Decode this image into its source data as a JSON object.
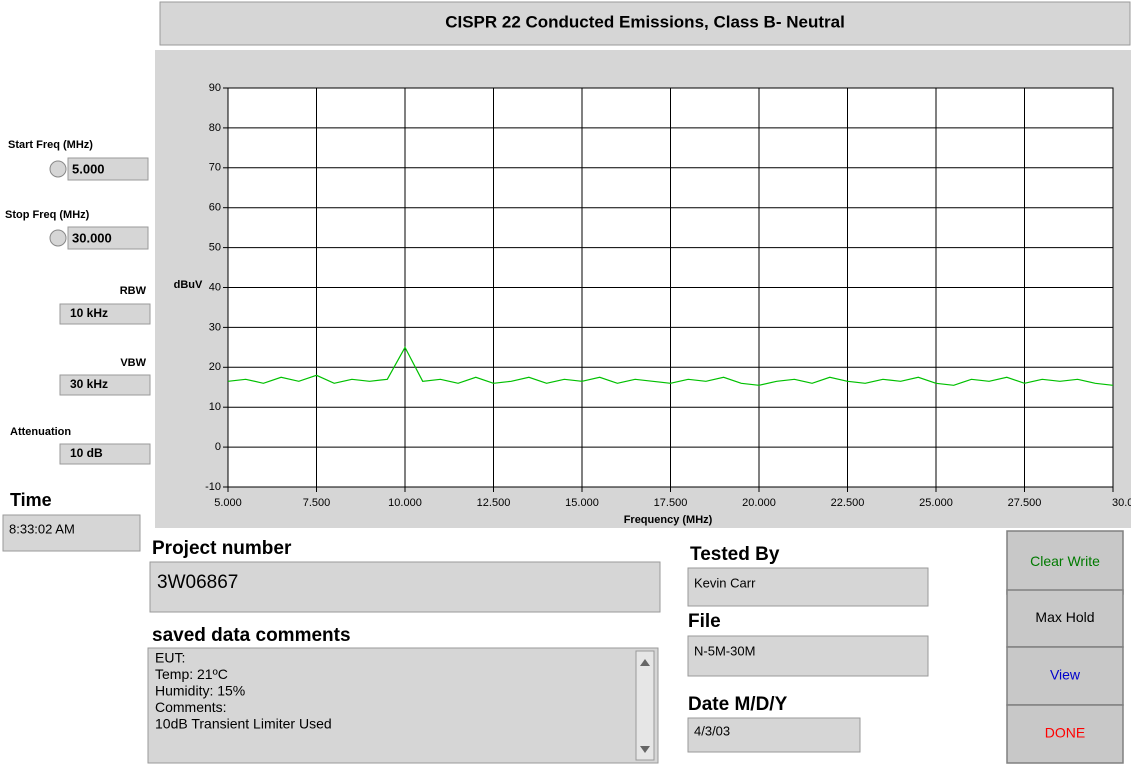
{
  "controls": {
    "start_freq": {
      "label": "Start Freq (MHz)",
      "value": "5.000"
    },
    "stop_freq": {
      "label": "Stop Freq (MHz)",
      "value": "30.000"
    },
    "rbw": {
      "label": "RBW",
      "value": "10 kHz"
    },
    "vbw": {
      "label": "VBW",
      "value": "30 kHz"
    },
    "attenuation": {
      "label": "Attenuation",
      "value": "10 dB"
    },
    "time": {
      "label": "Time",
      "value": "8:33:02 AM"
    }
  },
  "project": {
    "label": "Project number",
    "value": "3W06867"
  },
  "comments": {
    "label": "saved data comments",
    "lines": [
      "EUT:",
      "Temp: 21ºC",
      "Humidity: 15%",
      "Comments:",
      "10dB Transient Limiter Used"
    ]
  },
  "tested_by": {
    "label": "Tested By",
    "value": "Kevin Carr"
  },
  "file": {
    "label": "File",
    "value": "N-5M-30M"
  },
  "date": {
    "label": "Date M/D/Y",
    "value": "4/3/03"
  },
  "buttons": [
    {
      "label": "Clear Write",
      "color": "#007a00"
    },
    {
      "label": "Max Hold",
      "color": "#000000"
    },
    {
      "label": "View",
      "color": "#0000cc"
    },
    {
      "label": "DONE",
      "color": "#ff0000"
    }
  ],
  "chart_data": {
    "type": "line",
    "title": "CISPR 22 Conducted Emissions, Class B- Neutral",
    "x_label": "Frequency (MHz)",
    "y_label": "dBuV",
    "x": [
      5,
      5.5,
      6,
      6.5,
      7,
      7.5,
      8,
      8.5,
      9,
      9.5,
      10,
      10.5,
      11,
      11.5,
      12,
      12.5,
      13,
      13.5,
      14,
      14.5,
      15,
      15.5,
      16,
      16.5,
      17,
      17.5,
      18,
      18.5,
      19,
      19.5,
      20,
      20.5,
      21,
      21.5,
      22,
      22.5,
      23,
      23.5,
      24,
      24.5,
      25,
      25.5,
      26,
      26.5,
      27,
      27.5,
      28,
      28.5,
      29,
      29.5,
      30
    ],
    "series": [
      {
        "name": "Neutral",
        "color": "#00c000",
        "values": [
          16.5,
          17,
          16,
          17.5,
          16.5,
          18,
          16,
          17,
          16.5,
          17,
          25,
          16.5,
          17,
          16,
          17.5,
          16,
          16.5,
          17.5,
          16,
          17,
          16.5,
          17.5,
          16,
          17,
          16.5,
          16,
          17,
          16.5,
          17.5,
          16,
          15.5,
          16.5,
          17,
          16,
          17.5,
          16.5,
          16,
          17,
          16.5,
          17.5,
          16,
          15.5,
          17,
          16.5,
          17.5,
          16,
          17,
          16.5,
          17,
          16,
          15.5
        ]
      }
    ],
    "xlim": [
      5,
      30
    ],
    "ylim": [
      -10,
      90
    ],
    "xticks": [
      {
        "value": 5,
        "label": "5.000"
      },
      {
        "value": 7.5,
        "label": "7.500"
      },
      {
        "value": 10,
        "label": "10.000"
      },
      {
        "value": 12.5,
        "label": "12.500"
      },
      {
        "value": 15,
        "label": "15.000"
      },
      {
        "value": 17.5,
        "label": "17.500"
      },
      {
        "value": 20,
        "label": "20.000"
      },
      {
        "value": 22.5,
        "label": "22.500"
      },
      {
        "value": 25,
        "label": "25.000"
      },
      {
        "value": 27.5,
        "label": "27.500"
      },
      {
        "value": 30,
        "label": "30.000"
      }
    ],
    "yticks": [
      -10,
      0,
      10,
      20,
      30,
      40,
      50,
      60,
      70,
      80,
      90
    ],
    "grid": true
  }
}
